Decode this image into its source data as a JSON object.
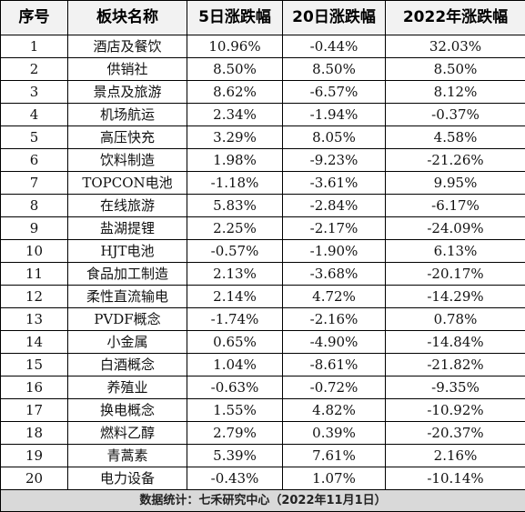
{
  "table": {
    "headers": [
      "序号",
      "板块名称",
      "5日涨跌幅",
      "20日涨跌幅",
      "2022年涨跌幅"
    ],
    "rows": [
      [
        "1",
        "酒店及餐饮",
        "10.96%",
        "-0.44%",
        "32.03%"
      ],
      [
        "2",
        "供销社",
        "8.50%",
        "8.50%",
        "8.50%"
      ],
      [
        "3",
        "景点及旅游",
        "8.62%",
        "-6.57%",
        "8.12%"
      ],
      [
        "4",
        "机场航运",
        "2.34%",
        "-1.94%",
        "-0.37%"
      ],
      [
        "5",
        "高压快充",
        "3.29%",
        "8.05%",
        "4.58%"
      ],
      [
        "6",
        "饮料制造",
        "1.98%",
        "-9.23%",
        "-21.26%"
      ],
      [
        "7",
        "TOPCON电池",
        "-1.18%",
        "-3.61%",
        "9.95%"
      ],
      [
        "8",
        "在线旅游",
        "5.83%",
        "-2.84%",
        "-6.17%"
      ],
      [
        "9",
        "盐湖提锂",
        "2.25%",
        "-2.17%",
        "-24.09%"
      ],
      [
        "10",
        "HJT电池",
        "-0.57%",
        "-1.90%",
        "6.13%"
      ],
      [
        "11",
        "食品加工制造",
        "2.13%",
        "-3.68%",
        "-20.17%"
      ],
      [
        "12",
        "柔性直流输电",
        "2.14%",
        "4.72%",
        "-14.29%"
      ],
      [
        "13",
        "PVDF概念",
        "-1.74%",
        "-2.16%",
        "0.78%"
      ],
      [
        "14",
        "小金属",
        "0.65%",
        "-4.90%",
        "-14.84%"
      ],
      [
        "15",
        "白酒概念",
        "1.04%",
        "-8.61%",
        "-21.82%"
      ],
      [
        "16",
        "养殖业",
        "-0.63%",
        "-0.72%",
        "-9.35%"
      ],
      [
        "17",
        "换电概念",
        "1.55%",
        "4.82%",
        "-10.92%"
      ],
      [
        "18",
        "燃料乙醇",
        "2.79%",
        "0.39%",
        "-20.37%"
      ],
      [
        "19",
        "青蒿素",
        "5.39%",
        "7.61%",
        "2.16%"
      ],
      [
        "20",
        "电力设备",
        "-0.43%",
        "1.07%",
        "-10.14%"
      ]
    ],
    "footer": "数据统计：七禾研究中心（2022年11月1日）"
  },
  "colors": {
    "header_bg": "#f2f2f2",
    "footer_bg": "#d9d9d9",
    "border": "#000000"
  }
}
